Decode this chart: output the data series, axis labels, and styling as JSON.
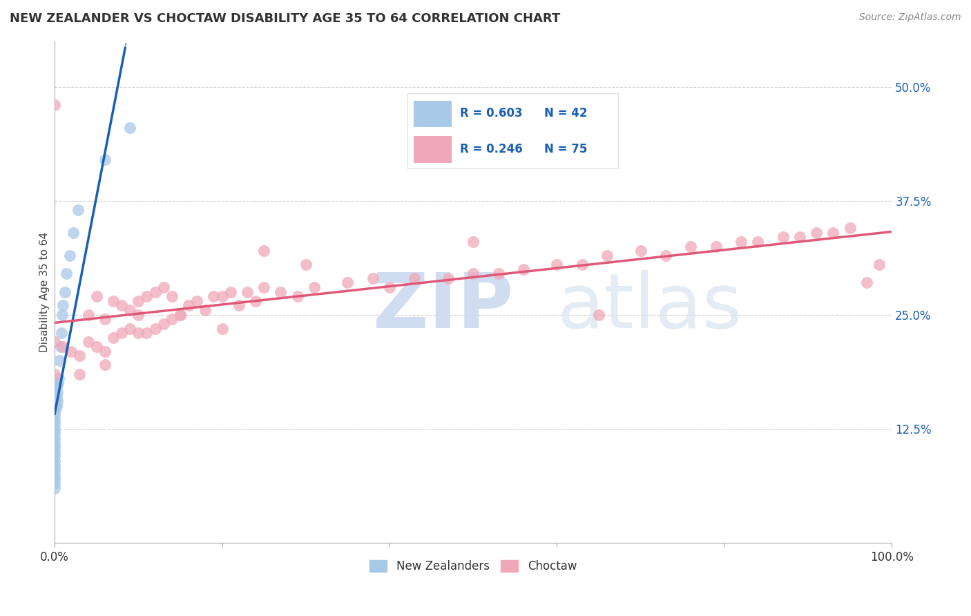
{
  "title": "NEW ZEALANDER VS CHOCTAW DISABILITY AGE 35 TO 64 CORRELATION CHART",
  "source": "Source: ZipAtlas.com",
  "ylabel": "Disability Age 35 to 64",
  "legend_label1": "New Zealanders",
  "legend_label2": "Choctaw",
  "r1": 0.603,
  "n1": 42,
  "r2": 0.246,
  "n2": 75,
  "color1": "#a8c8e8",
  "color2": "#f0a8b8",
  "line_color1": "#1a5fb4",
  "line_color2": "#e05878",
  "background": "#ffffff",
  "grid_color": "#cccccc",
  "xlim": [
    0.0,
    1.0
  ],
  "ylim": [
    0.0,
    0.55
  ],
  "ytick_labels_right": [
    "12.5%",
    "25.0%",
    "37.5%",
    "50.0%"
  ],
  "ytick_values_right": [
    0.125,
    0.25,
    0.375,
    0.5
  ],
  "nz_x": [
    0.0,
    0.0,
    0.0,
    0.0,
    0.0,
    0.0,
    0.0,
    0.0,
    0.0,
    0.0,
    0.0,
    0.0,
    0.0,
    0.0,
    0.0,
    0.0,
    0.0,
    0.001,
    0.001,
    0.001,
    0.001,
    0.001,
    0.002,
    0.002,
    0.002,
    0.003,
    0.003,
    0.003,
    0.004,
    0.005,
    0.006,
    0.007,
    0.008,
    0.009,
    0.01,
    0.012,
    0.014,
    0.018,
    0.022,
    0.028,
    0.06,
    0.09
  ],
  "nz_y": [
    0.06,
    0.065,
    0.07,
    0.075,
    0.08,
    0.085,
    0.09,
    0.095,
    0.1,
    0.105,
    0.11,
    0.115,
    0.12,
    0.125,
    0.13,
    0.135,
    0.14,
    0.145,
    0.15,
    0.155,
    0.16,
    0.165,
    0.15,
    0.16,
    0.17,
    0.155,
    0.165,
    0.175,
    0.175,
    0.18,
    0.2,
    0.215,
    0.23,
    0.25,
    0.26,
    0.275,
    0.295,
    0.315,
    0.34,
    0.365,
    0.42,
    0.455
  ],
  "choctaw_x": [
    0.0,
    0.0,
    0.01,
    0.02,
    0.03,
    0.04,
    0.04,
    0.05,
    0.05,
    0.06,
    0.06,
    0.07,
    0.07,
    0.08,
    0.08,
    0.09,
    0.09,
    0.1,
    0.1,
    0.11,
    0.11,
    0.12,
    0.12,
    0.13,
    0.13,
    0.14,
    0.14,
    0.15,
    0.16,
    0.17,
    0.18,
    0.19,
    0.2,
    0.21,
    0.22,
    0.23,
    0.24,
    0.25,
    0.27,
    0.29,
    0.31,
    0.35,
    0.38,
    0.4,
    0.43,
    0.47,
    0.5,
    0.53,
    0.56,
    0.6,
    0.63,
    0.66,
    0.7,
    0.73,
    0.76,
    0.79,
    0.82,
    0.84,
    0.87,
    0.89,
    0.91,
    0.93,
    0.95,
    0.97,
    0.985,
    0.0,
    0.03,
    0.06,
    0.1,
    0.15,
    0.2,
    0.25,
    0.3,
    0.5,
    0.65
  ],
  "choctaw_y": [
    0.22,
    0.48,
    0.215,
    0.21,
    0.205,
    0.22,
    0.25,
    0.215,
    0.27,
    0.21,
    0.245,
    0.225,
    0.265,
    0.23,
    0.26,
    0.235,
    0.255,
    0.23,
    0.265,
    0.23,
    0.27,
    0.235,
    0.275,
    0.24,
    0.28,
    0.245,
    0.27,
    0.25,
    0.26,
    0.265,
    0.255,
    0.27,
    0.27,
    0.275,
    0.26,
    0.275,
    0.265,
    0.28,
    0.275,
    0.27,
    0.28,
    0.285,
    0.29,
    0.28,
    0.29,
    0.29,
    0.295,
    0.295,
    0.3,
    0.305,
    0.305,
    0.315,
    0.32,
    0.315,
    0.325,
    0.325,
    0.33,
    0.33,
    0.335,
    0.335,
    0.34,
    0.34,
    0.345,
    0.285,
    0.305,
    0.185,
    0.185,
    0.195,
    0.25,
    0.25,
    0.235,
    0.32,
    0.305,
    0.33,
    0.25
  ]
}
